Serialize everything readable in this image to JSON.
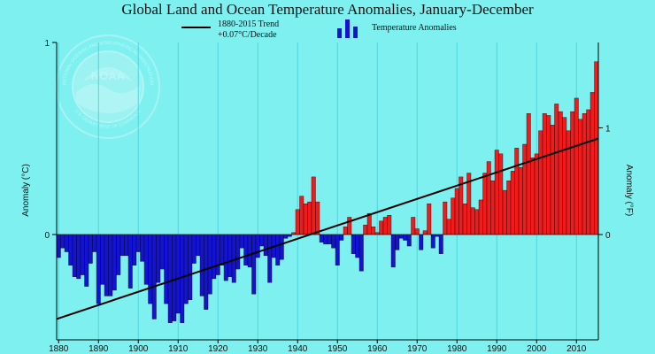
{
  "chart_data": {
    "type": "bar",
    "title": "Global Land and Ocean Temperature Anomalies, January-December",
    "ylabel_left": "Anomaly (°C)",
    "ylabel_right": "Anomaly (°F)",
    "legend": {
      "trend_line1": "1880-2015 Trend",
      "trend_line2": "+0.07°C/Decade",
      "bars": "Temperature Anomalies"
    },
    "watermark": "NOAA",
    "watermark_ring": "NATIONAL OCEANIC AND ATMOSPHERIC ADMINISTRATION",
    "watermark_ring_bottom": "U.S. DEPARTMENT OF COMMERCE",
    "x_range": [
      1880,
      2015
    ],
    "ylim_c": [
      -1,
      1
    ],
    "yticks_c": [
      "1",
      "0"
    ],
    "yticks_f": [
      "1",
      "0"
    ],
    "xticks": [
      "1880",
      "1890",
      "1900",
      "1910",
      "1920",
      "1930",
      "1940",
      "1950",
      "1960",
      "1970",
      "1980",
      "1990",
      "2000",
      "2010"
    ],
    "trend": {
      "start_year": 1880,
      "start_value": -0.44,
      "end_year": 2015,
      "end_value": 0.5
    },
    "colors": {
      "positive": "#ee1c1c",
      "negative": "#1414d0",
      "trend": "#000000",
      "grid": "#4fd6dd",
      "background": "#7ff0f0"
    },
    "grid": true,
    "years": [
      1880,
      1881,
      1882,
      1883,
      1884,
      1885,
      1886,
      1887,
      1888,
      1889,
      1890,
      1891,
      1892,
      1893,
      1894,
      1895,
      1896,
      1897,
      1898,
      1899,
      1900,
      1901,
      1902,
      1903,
      1904,
      1905,
      1906,
      1907,
      1908,
      1909,
      1910,
      1911,
      1912,
      1913,
      1914,
      1915,
      1916,
      1917,
      1918,
      1919,
      1920,
      1921,
      1922,
      1923,
      1924,
      1925,
      1926,
      1927,
      1928,
      1929,
      1930,
      1931,
      1932,
      1933,
      1934,
      1935,
      1936,
      1937,
      1938,
      1939,
      1940,
      1941,
      1942,
      1943,
      1944,
      1945,
      1946,
      1947,
      1948,
      1949,
      1950,
      1951,
      1952,
      1953,
      1954,
      1955,
      1956,
      1957,
      1958,
      1959,
      1960,
      1961,
      1962,
      1963,
      1964,
      1965,
      1966,
      1967,
      1968,
      1969,
      1970,
      1971,
      1972,
      1973,
      1974,
      1975,
      1976,
      1977,
      1978,
      1979,
      1980,
      1981,
      1982,
      1983,
      1984,
      1985,
      1986,
      1987,
      1988,
      1989,
      1990,
      1991,
      1992,
      1993,
      1994,
      1995,
      1996,
      1997,
      1998,
      1999,
      2000,
      2001,
      2002,
      2003,
      2004,
      2005,
      2006,
      2007,
      2008,
      2009,
      2010,
      2011,
      2012,
      2013,
      2014,
      2015
    ],
    "values": [
      -0.12,
      -0.07,
      -0.09,
      -0.16,
      -0.22,
      -0.23,
      -0.21,
      -0.27,
      -0.15,
      -0.09,
      -0.36,
      -0.26,
      -0.32,
      -0.32,
      -0.29,
      -0.21,
      -0.11,
      -0.11,
      -0.28,
      -0.16,
      -0.09,
      -0.14,
      -0.26,
      -0.36,
      -0.44,
      -0.25,
      -0.18,
      -0.36,
      -0.46,
      -0.45,
      -0.41,
      -0.46,
      -0.36,
      -0.34,
      -0.15,
      -0.11,
      -0.32,
      -0.39,
      -0.31,
      -0.23,
      -0.21,
      -0.16,
      -0.24,
      -0.22,
      -0.25,
      -0.18,
      -0.07,
      -0.16,
      -0.17,
      -0.31,
      -0.12,
      -0.06,
      -0.11,
      -0.25,
      -0.12,
      -0.16,
      -0.13,
      -0.02,
      -0.01,
      0.01,
      0.13,
      0.2,
      0.16,
      0.17,
      0.3,
      0.17,
      -0.04,
      -0.05,
      -0.05,
      -0.07,
      -0.16,
      -0.03,
      0.04,
      0.09,
      -0.1,
      -0.12,
      -0.19,
      0.05,
      0.11,
      0.04,
      0.01,
      0.07,
      0.09,
      0.1,
      -0.17,
      -0.08,
      -0.02,
      -0.03,
      -0.06,
      0.09,
      0.03,
      -0.08,
      0.02,
      0.16,
      -0.07,
      -0.01,
      -0.1,
      0.17,
      0.08,
      0.19,
      0.24,
      0.3,
      0.16,
      0.32,
      0.14,
      0.13,
      0.18,
      0.32,
      0.38,
      0.28,
      0.44,
      0.42,
      0.23,
      0.28,
      0.33,
      0.45,
      0.35,
      0.47,
      0.63,
      0.4,
      0.42,
      0.54,
      0.63,
      0.62,
      0.57,
      0.68,
      0.64,
      0.61,
      0.54,
      0.64,
      0.71,
      0.6,
      0.63,
      0.65,
      0.74,
      0.9
    ]
  }
}
